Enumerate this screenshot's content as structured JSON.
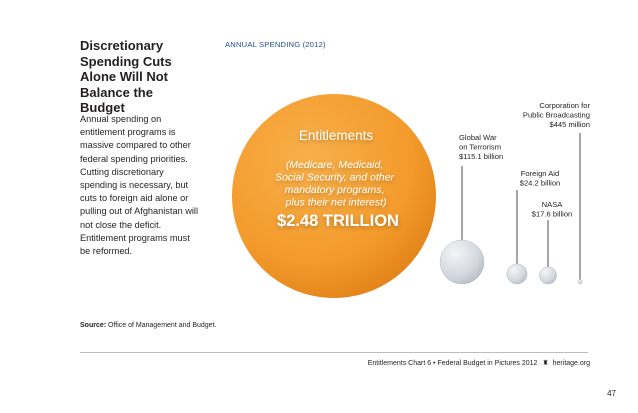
{
  "sidebar": {
    "title": "Discretionary Spending Cuts Alone Will Not Balance the Budget",
    "body": "Annual spending on entitlement programs is massive compared to other federal spending priorities. Cutting discretionary spending is necessary, but cuts to foreign aid alone or pulling out of Afghanistan will not close the deficit. Entitlement programs must be reformed.",
    "source_label": "Source:",
    "source_text": "Office of Management and Budget."
  },
  "chart_data": {
    "type": "bubble",
    "title": "ANNUAL SPENDING (2012)",
    "units": "USD",
    "series": [
      {
        "name": "Entitlements",
        "detail": "(Medicare, Medicaid, Social Security, and other mandatory programs, plus their net interest)",
        "value_label": "$2.48 TRILLION",
        "value_billion": 2480
      },
      {
        "name": "Global War on Terrorism",
        "label_lines": [
          "Global War",
          "on Terrorism",
          "$115.1 billion"
        ],
        "value_billion": 115.1
      },
      {
        "name": "Foreign Aid",
        "label_lines": [
          "Foreign Aid",
          "$24.2 billion"
        ],
        "value_billion": 24.2
      },
      {
        "name": "NASA",
        "label_lines": [
          "NASA",
          "$17.6 billion"
        ],
        "value_billion": 17.6
      },
      {
        "name": "Corporation for Public Broadcasting",
        "label_lines": [
          "Corporation for",
          "Public Broadcasting",
          "$445 million"
        ],
        "value_billion": 0.445
      }
    ],
    "colors": {
      "entitlements": "#f39a2b",
      "small": "#d9dde3",
      "leader": "#231f20"
    }
  },
  "footer": {
    "text": "Entitlements Chart 6 • Federal Budget in Pictures 2012",
    "site": "heritage.org",
    "page": "47"
  }
}
